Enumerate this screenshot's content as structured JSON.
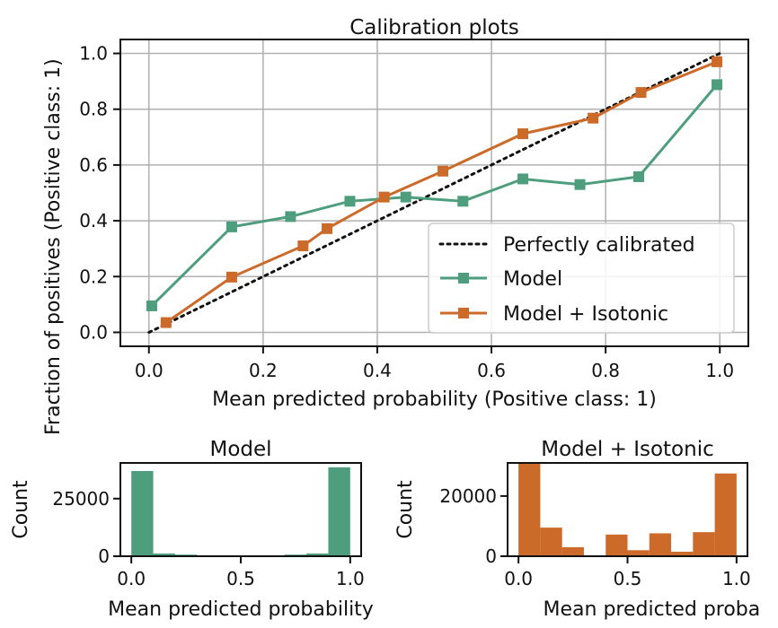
{
  "chart_data": [
    {
      "type": "line",
      "title": "Calibration plots",
      "xlabel": "Mean predicted probability (Positive class: 1)",
      "ylabel": "Fraction of positives (Positive class: 1)",
      "xlim": [
        -0.05,
        1.05
      ],
      "ylim": [
        -0.05,
        1.05
      ],
      "xticks": [
        0.0,
        0.2,
        0.4,
        0.6,
        0.8,
        1.0
      ],
      "xtick_labels": [
        "0.0",
        "0.2",
        "0.4",
        "0.6",
        "0.8",
        "1.0"
      ],
      "yticks": [
        0.0,
        0.2,
        0.4,
        0.6,
        0.8,
        1.0
      ],
      "ytick_labels": [
        "0.0",
        "0.2",
        "0.4",
        "0.6",
        "0.8",
        "1.0"
      ],
      "grid": true,
      "legend": "lower-right",
      "series": [
        {
          "name": "Perfectly calibrated",
          "style": "dotted",
          "color": "#111111",
          "x": [
            0.0,
            1.0
          ],
          "y": [
            0.0,
            1.0
          ]
        },
        {
          "name": "Model",
          "style": "line-square",
          "color": "#4e9e7d",
          "x": [
            0.005,
            0.145,
            0.248,
            0.352,
            0.45,
            0.55,
            0.655,
            0.755,
            0.858,
            0.995
          ],
          "y": [
            0.095,
            0.378,
            0.415,
            0.47,
            0.485,
            0.47,
            0.55,
            0.53,
            0.558,
            0.888
          ]
        },
        {
          "name": "Model + Isotonic",
          "style": "line-square",
          "color": "#cc6a2a",
          "x": [
            0.03,
            0.145,
            0.27,
            0.312,
            0.412,
            0.515,
            0.655,
            0.778,
            0.862,
            0.995
          ],
          "y": [
            0.035,
            0.198,
            0.31,
            0.372,
            0.485,
            0.578,
            0.712,
            0.768,
            0.86,
            0.97
          ]
        }
      ]
    },
    {
      "type": "bar",
      "title": "Model",
      "xlabel": "Mean predicted probability",
      "ylabel": "Count",
      "color": "#4e9e7d",
      "bin_edges": [
        0.0,
        0.1,
        0.2,
        0.3,
        0.4,
        0.5,
        0.6,
        0.7,
        0.8,
        0.9,
        1.0
      ],
      "values": [
        37000,
        1200,
        700,
        400,
        300,
        300,
        400,
        700,
        1200,
        38600
      ],
      "xlim": [
        -0.05,
        1.05
      ],
      "ylim": [
        0,
        40500
      ],
      "xticks": [
        0.0,
        0.5,
        1.0
      ],
      "xtick_labels": [
        "0.0",
        "0.5",
        "1.0"
      ],
      "yticks": [
        0,
        25000
      ],
      "ytick_labels": [
        "0",
        "25000"
      ]
    },
    {
      "type": "bar",
      "title": "Model + Isotonic",
      "xlabel": "Mean predicted probabil",
      "ylabel": "Count",
      "color": "#cc6a2a",
      "bin_edges": [
        0.0,
        0.1,
        0.2,
        0.3,
        0.4,
        0.5,
        0.6,
        0.7,
        0.8,
        0.9,
        1.0
      ],
      "values": [
        31000,
        9500,
        3000,
        300,
        7200,
        2000,
        7600,
        1500,
        8000,
        27500
      ],
      "xlim": [
        -0.05,
        1.05
      ],
      "ylim": [
        0,
        31000
      ],
      "xticks": [
        0.0,
        0.5,
        1.0
      ],
      "xtick_labels": [
        "0.0",
        "0.5",
        "1.0"
      ],
      "yticks": [
        0,
        20000
      ],
      "ytick_labels": [
        "0",
        "20000"
      ]
    }
  ]
}
